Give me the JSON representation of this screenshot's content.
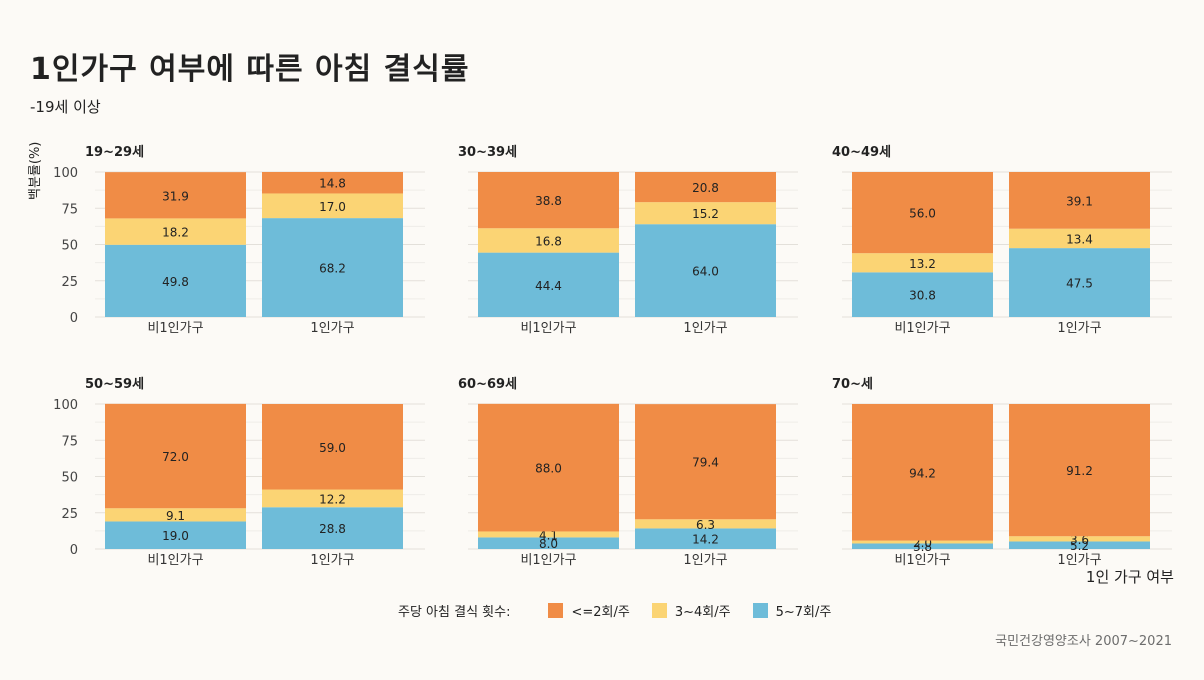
{
  "title": "1인가구 여부에 따른 아침 결식률",
  "subtitle": "-19세 이상",
  "y_axis_label": "백분률(%)",
  "x_axis_title": "1인 가구 여부",
  "source": "국민건강영양조사 2007~2021",
  "legend": {
    "title": "주당 아침 결식 횟수:",
    "items": [
      {
        "label": "<=2회/주",
        "color": "#f08c46"
      },
      {
        "label": "3~4회/주",
        "color": "#fbd474"
      },
      {
        "label": "5~7회/주",
        "color": "#6ebcd9"
      }
    ]
  },
  "chart_data": {
    "type": "bar",
    "stacked": true,
    "y_ticks": [
      0,
      25,
      50,
      75,
      100
    ],
    "ylim": [
      0,
      100
    ],
    "categories": [
      "비1인가구",
      "1인가구"
    ],
    "panels": [
      {
        "label": "19~29세",
        "series": [
          {
            "name": "<=2회/주",
            "values": [
              31.9,
              14.8
            ]
          },
          {
            "name": "3~4회/주",
            "values": [
              18.2,
              17.0
            ]
          },
          {
            "name": "5~7회/주",
            "values": [
              49.8,
              68.2
            ]
          }
        ]
      },
      {
        "label": "30~39세",
        "series": [
          {
            "name": "<=2회/주",
            "values": [
              38.8,
              20.8
            ]
          },
          {
            "name": "3~4회/주",
            "values": [
              16.8,
              15.2
            ]
          },
          {
            "name": "5~7회/주",
            "values": [
              44.4,
              64.0
            ]
          }
        ]
      },
      {
        "label": "40~49세",
        "series": [
          {
            "name": "<=2회/주",
            "values": [
              56.0,
              39.1
            ]
          },
          {
            "name": "3~4회/주",
            "values": [
              13.2,
              13.4
            ]
          },
          {
            "name": "5~7회/주",
            "values": [
              30.8,
              47.5
            ]
          }
        ]
      },
      {
        "label": "50~59세",
        "series": [
          {
            "name": "<=2회/주",
            "values": [
              72.0,
              59.0
            ]
          },
          {
            "name": "3~4회/주",
            "values": [
              9.1,
              12.2
            ]
          },
          {
            "name": "5~7회/주",
            "values": [
              19.0,
              28.8
            ]
          }
        ]
      },
      {
        "label": "60~69세",
        "series": [
          {
            "name": "<=2회/주",
            "values": [
              88.0,
              79.4
            ]
          },
          {
            "name": "3~4회/주",
            "values": [
              4.1,
              6.3
            ]
          },
          {
            "name": "5~7회/주",
            "values": [
              8.0,
              14.2
            ]
          }
        ]
      },
      {
        "label": "70~세",
        "series": [
          {
            "name": "<=2회/주",
            "values": [
              94.2,
              91.2
            ]
          },
          {
            "name": "3~4회/주",
            "values": [
              2.0,
              3.6
            ]
          },
          {
            "name": "5~7회/주",
            "values": [
              3.8,
              5.2
            ]
          }
        ]
      }
    ]
  }
}
